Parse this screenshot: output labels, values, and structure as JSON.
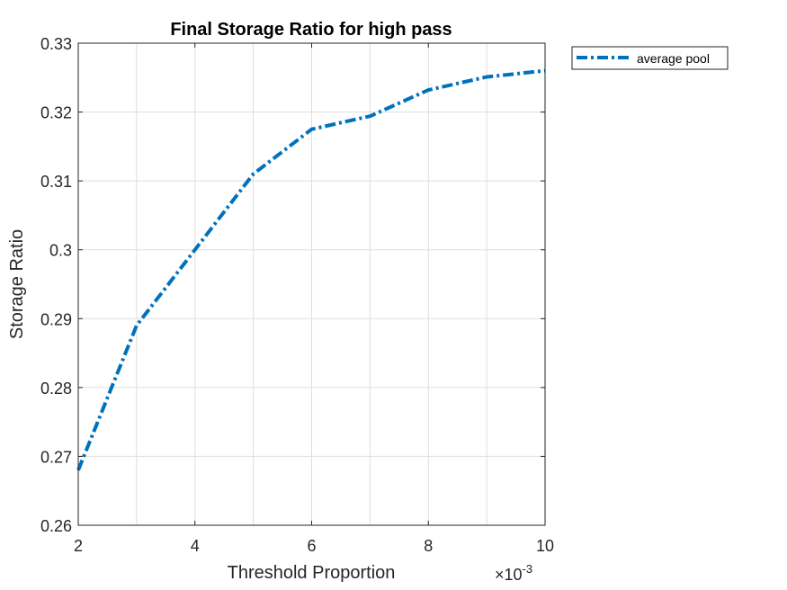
{
  "chart_data": {
    "type": "line",
    "title": "Final Storage Ratio for high pass",
    "xlabel": "Threshold Proportion",
    "ylabel": "Storage Ratio",
    "x_exponent_label": "×10",
    "x_exponent_power": "-3",
    "xlim": [
      0.002,
      0.01
    ],
    "ylim": [
      0.26,
      0.33
    ],
    "x_ticks": [
      0.002,
      0.004,
      0.006,
      0.008,
      0.01
    ],
    "x_tick_labels": [
      "2",
      "4",
      "6",
      "8",
      "10"
    ],
    "y_ticks": [
      0.26,
      0.27,
      0.28,
      0.29,
      0.3,
      0.31,
      0.32,
      0.33
    ],
    "y_tick_labels": [
      "0.26",
      "0.27",
      "0.28",
      "0.29",
      "0.3",
      "0.31",
      "0.32",
      "0.33"
    ],
    "x_minor_grid": [
      0.003,
      0.005,
      0.007,
      0.009
    ],
    "grid": true,
    "legend_position": "outside-top-right",
    "series": [
      {
        "name": "average pool",
        "color": "#0072BD",
        "line_style": "dash-dot",
        "x": [
          0.002,
          0.003,
          0.004,
          0.005,
          0.006,
          0.007,
          0.008,
          0.009,
          0.01
        ],
        "y": [
          0.268,
          0.289,
          0.3,
          0.311,
          0.3175,
          0.3194,
          0.3232,
          0.3251,
          0.326
        ]
      }
    ]
  }
}
